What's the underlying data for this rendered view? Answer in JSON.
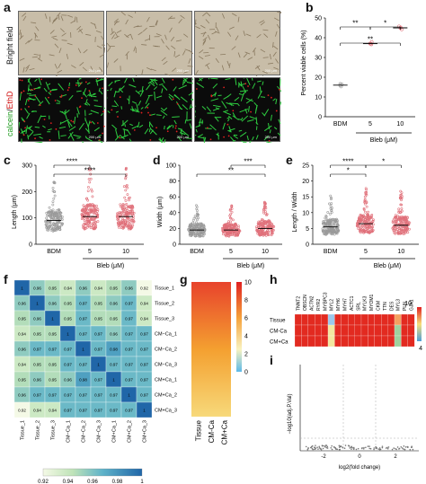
{
  "panel_labels": [
    "a",
    "b",
    "c",
    "d",
    "e",
    "f",
    "g",
    "h",
    "i"
  ],
  "panel_a": {
    "row_labels": [
      "Bright field",
      "calcein",
      "/",
      "EthD"
    ],
    "scalebar": "200 μm"
  },
  "panel_b": {
    "type": "scatter",
    "ylabel": "Percent viable cells (%)",
    "yticks": [
      "0",
      "10",
      "20",
      "30",
      "40",
      "50"
    ],
    "ylim": [
      0,
      50
    ],
    "categories": [
      "BDM",
      "5",
      "10"
    ],
    "group_label": "Bleb (μM)",
    "values": [
      16,
      37,
      45
    ],
    "significance": [
      "**",
      "*",
      "**"
    ]
  },
  "panel_c": {
    "type": "scatter",
    "ylabel": "Length (μm)",
    "yticks": [
      "0",
      "100",
      "200",
      "300"
    ],
    "ylim": [
      0,
      300
    ],
    "categories": [
      "BDM",
      "5",
      "10"
    ],
    "group_label": "Bleb (μM)",
    "means": [
      90,
      105,
      105
    ],
    "significance": [
      "****",
      "****"
    ]
  },
  "panel_d": {
    "type": "scatter",
    "ylabel": "Width (μm)",
    "yticks": [
      "0",
      "20",
      "40",
      "60",
      "80",
      "100"
    ],
    "ylim": [
      0,
      100
    ],
    "categories": [
      "BDM",
      "5",
      "10"
    ],
    "group_label": "Bleb (μM)",
    "means": [
      18,
      18,
      20
    ],
    "significance": [
      "***",
      "**"
    ]
  },
  "panel_e": {
    "type": "scatter",
    "ylabel": "Length / Width",
    "yticks": [
      "0",
      "5",
      "10",
      "15",
      "20",
      "25"
    ],
    "ylim": [
      0,
      25
    ],
    "categories": [
      "BDM",
      "5",
      "10"
    ],
    "group_label": "Bleb (μM)",
    "means": [
      5.5,
      6.5,
      6
    ],
    "significance": [
      "****",
      "*",
      "*"
    ]
  },
  "panel_f": {
    "type": "heatmap",
    "labels": [
      "Tissue_1",
      "Tissue_2",
      "Tissue_3",
      "CM−Ca_1",
      "CM−Ca_2",
      "CM−Ca_3",
      "CM+Ca_1",
      "CM+Ca_2",
      "CM+Ca_3"
    ],
    "matrix": [
      [
        "1",
        "0.96",
        "0.95",
        "0.94",
        "0.96",
        "0.94",
        "0.95",
        "0.96",
        "0.92"
      ],
      [
        "0.96",
        "1",
        "0.96",
        "0.95",
        "0.97",
        "0.95",
        "0.96",
        "0.97",
        "0.94"
      ],
      [
        "0.95",
        "0.96",
        "1",
        "0.95",
        "0.97",
        "0.95",
        "0.95",
        "0.97",
        "0.94"
      ],
      [
        "0.94",
        "0.95",
        "0.95",
        "1",
        "0.97",
        "0.97",
        "0.96",
        "0.97",
        "0.97"
      ],
      [
        "0.96",
        "0.97",
        "0.97",
        "0.97",
        "1",
        "0.97",
        "0.98",
        "0.97",
        "0.97"
      ],
      [
        "0.94",
        "0.95",
        "0.95",
        "0.97",
        "0.97",
        "1",
        "0.97",
        "0.97",
        "0.97"
      ],
      [
        "0.95",
        "0.96",
        "0.95",
        "0.96",
        "0.98",
        "0.97",
        "1",
        "0.97",
        "0.97"
      ],
      [
        "0.96",
        "0.97",
        "0.97",
        "0.97",
        "0.97",
        "0.97",
        "0.97",
        "1",
        "0.97"
      ],
      [
        "0.92",
        "0.94",
        "0.94",
        "0.97",
        "0.97",
        "0.97",
        "0.97",
        "0.97",
        "1"
      ]
    ],
    "colorbar_ticks": [
      "0.92",
      "0.94",
      "0.96",
      "0.98",
      "1"
    ]
  },
  "panel_g": {
    "type": "heatmap",
    "columns": [
      "Tissue",
      "CM-Ca",
      "CM+Ca"
    ],
    "colorbar_ticks": [
      "0",
      "2",
      "4",
      "6",
      "8",
      "10"
    ]
  },
  "panel_h": {
    "type": "heatmap",
    "genes": [
      "TNNT2",
      "OBSCN",
      "ACTN2",
      "RYR2",
      "MYBPC3",
      "MYL2",
      "MYH6",
      "MYH7",
      "ACTC1",
      "SRL",
      "MYLK3",
      "MYOM1",
      "CKM",
      "TTN",
      "DES",
      "MYL3",
      "PLN",
      "GJA1"
    ],
    "rows": [
      "Tissue",
      "CM-Ca",
      "CM+Ca"
    ],
    "colorbar_ticks": [
      "10",
      "4"
    ]
  },
  "panel_i": {
    "type": "scatter",
    "ylabel": "−log10(adj.P.Val)",
    "xlabel": "log2(fold change)",
    "xticks": [
      "-2",
      "0",
      "2"
    ]
  },
  "colors": {
    "bdm": "#9a9a9a",
    "bleb": "#e0707a",
    "heat_low": "#f4f9e6",
    "heat_high": "#2066a8",
    "red": "#e22a20",
    "yellow": "#f0d070",
    "green_cells": "#2ecc40",
    "red_cells": "#e02020"
  }
}
